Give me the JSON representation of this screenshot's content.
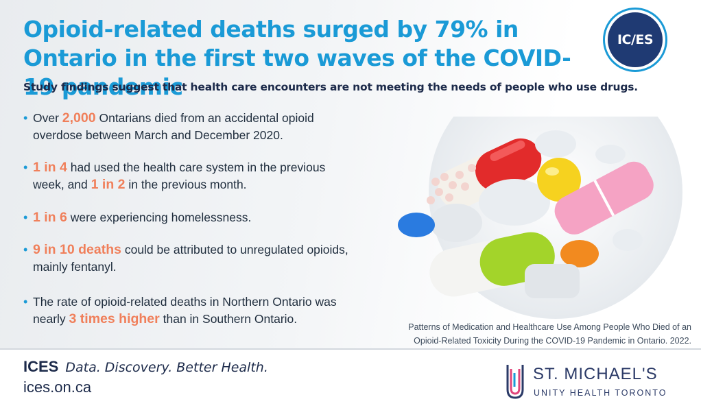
{
  "header": {
    "title": "Opioid-related deaths surged by 79% in Ontario in the first two waves of the COVID-19 pandemic",
    "subtitle": "Study findings suggest that health care encounters are not meeting the needs of people who use drugs.",
    "logo_text": "IC/ES"
  },
  "bullets": [
    {
      "pre": "Over ",
      "highlight": "2,000",
      "post": " Ontarians died from an accidental opioid overdose between March and December 2020."
    },
    {
      "pre": "",
      "highlight": "1 in 4",
      "mid": " had used the health care system in the previous week, and ",
      "highlight2": "1 in 2",
      "post": " in the previous month."
    },
    {
      "pre": "",
      "highlight": "1 in 6",
      "post": " were experiencing homelessness."
    },
    {
      "pre": "",
      "highlight": "9 in 10 deaths",
      "post": " could be attributed to unregulated opioids, mainly fentanyl."
    },
    {
      "pre": "The rate of opioid-related deaths in Northern Ontario was nearly ",
      "highlight": "3 times higher",
      "post": " than in Southern Ontario."
    }
  ],
  "citation": {
    "line1": "Patterns of Medication and Healthcare Use Among People Who Died of an",
    "line2": "Opioid-Related Toxicity During the COVID-19 Pandemic in Ontario. 2022."
  },
  "footer": {
    "brand": "ICES",
    "tagline": "Data. Discovery. Better Health.",
    "url": "ices.on.ca",
    "partner_name": "ST. MICHAEL'S",
    "partner_sub": "UNITY HEALTH TORONTO"
  },
  "colors": {
    "title_blue": "#1a9ad6",
    "highlight_orange": "#f07f5a",
    "navy": "#1c2a4a"
  }
}
